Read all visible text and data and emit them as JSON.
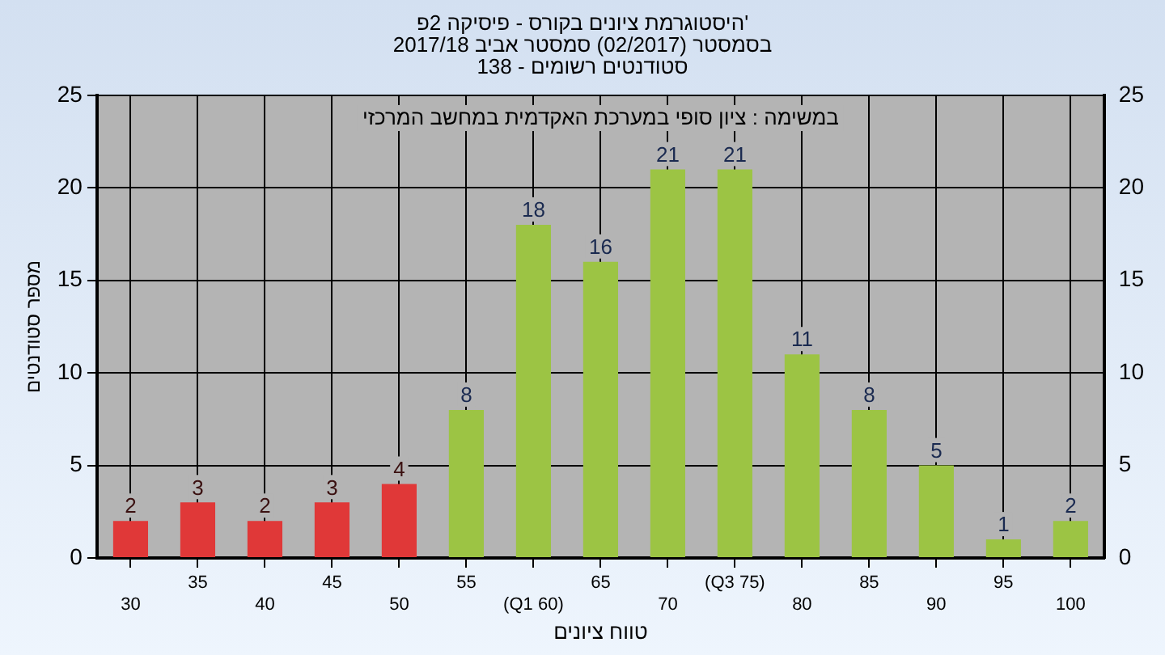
{
  "chart_data": {
    "type": "bar",
    "title": "היסטוגרמת ציונים בקורס - פיסיקה 2פ'\nבסמסטר (02/2017) סמסטר אביב 2017/18\nסטודנטים רשומים - 138",
    "annotations": [
      "במשימה : ציון סופי במערכת האקדמית במחשב המרכזי"
    ],
    "xlabel": "טווח ציונים",
    "ylabel": "מספר סטודנטים",
    "categories": [
      "30",
      "35",
      "40",
      "45",
      "50",
      "55",
      "(Q1 60)",
      "65",
      "70",
      "(Q3 75)",
      "80",
      "85",
      "90",
      "95",
      "100"
    ],
    "series": [
      {
        "colors": [
          "#e03838",
          "#e03838",
          "#e03838",
          "#e03838",
          "#e03838",
          "#9cc444",
          "#9cc444",
          "#9cc444",
          "#9cc444",
          "#9cc444",
          "#9cc444",
          "#9cc444",
          "#9cc444",
          "#9cc444",
          "#9cc444"
        ],
        "values": [
          2,
          3,
          2,
          3,
          4,
          8,
          18,
          16,
          21,
          21,
          11,
          8,
          5,
          1,
          2
        ]
      }
    ],
    "ylim": [
      0,
      25
    ],
    "yticks": [
      0,
      5,
      10,
      15,
      20,
      25
    ],
    "y2lim": [
      0,
      25
    ],
    "y2ticks": [
      0,
      5,
      10,
      15,
      20,
      25
    ],
    "grid": true,
    "legend": false,
    "data_labels": true
  }
}
